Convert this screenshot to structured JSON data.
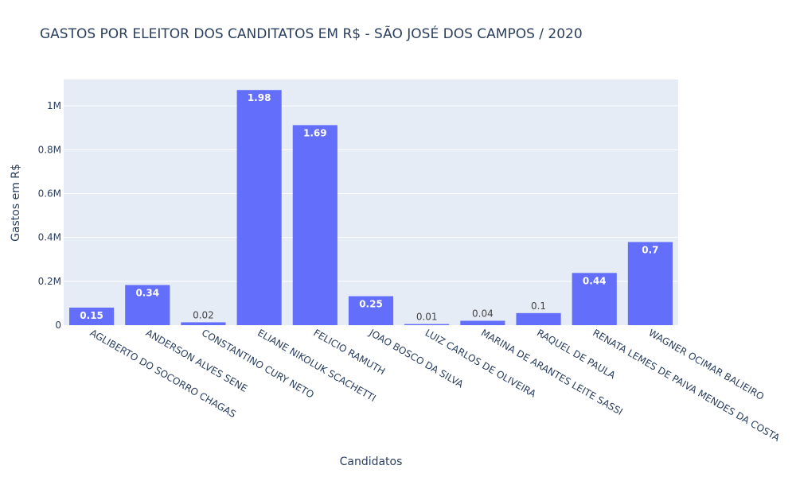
{
  "chart_data": {
    "type": "bar",
    "title": "GASTOS POR ELEITOR DOS CANDITATOS EM R$ - SÃO JOSÉ DOS CAMPOS / 2020",
    "xlabel": "Candidatos",
    "ylabel": "Gastos em R$",
    "ylim": [
      0,
      1120000
    ],
    "yticks": [
      {
        "value": 0,
        "label": "0"
      },
      {
        "value": 200000,
        "label": "0.2M"
      },
      {
        "value": 400000,
        "label": "0.4M"
      },
      {
        "value": 600000,
        "label": "0.6M"
      },
      {
        "value": 800000,
        "label": "0.8M"
      },
      {
        "value": 1000000,
        "label": "1M"
      }
    ],
    "categories": [
      "AGLIBERTO DO SOCORRO CHAGAS",
      "ANDERSON ALVES SENE",
      "CONSTANTINO CURY NETO",
      "ELIANE NIKOLUK SCACHETTI",
      "FELICIO RAMUTH",
      "JOAO BOSCO DA SILVA",
      "LUIZ CARLOS DE OLIVEIRA",
      "MARINA DE ARANTES LEITE SASSI",
      "RAQUEL DE PAULA",
      "RENATA LEMES DE PAIVA MENDES DA COSTA",
      "WAGNER OCIMAR BALIEIRO"
    ],
    "values": [
      80000,
      183000,
      13000,
      1072000,
      912000,
      132000,
      5000,
      20000,
      55000,
      238000,
      379000
    ],
    "data_labels": [
      "0.15",
      "0.34",
      "0.02",
      "1.98",
      "1.69",
      "0.25",
      "0.01",
      "0.04",
      "0.1",
      "0.44",
      "0.7"
    ],
    "grid": true,
    "colors": {
      "bar": "#636efa",
      "plot_bg": "#e5ecf6",
      "grid": "#ffffff",
      "text": "#2a3f5f",
      "label_inside": "#ffffff",
      "label_outside": "#444444"
    }
  }
}
